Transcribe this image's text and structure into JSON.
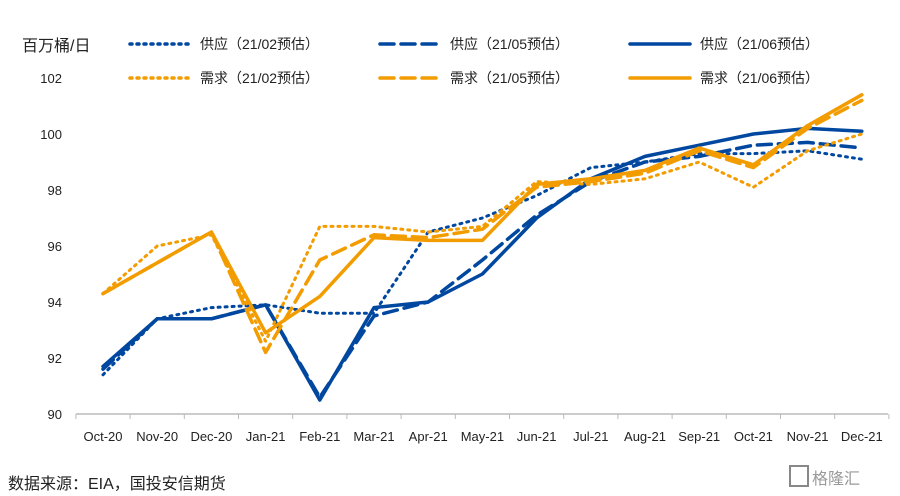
{
  "chart_data": {
    "type": "line",
    "ylabel": "百万桶/日",
    "ylim": [
      90,
      102
    ],
    "yticks": [
      90,
      92,
      94,
      96,
      98,
      100,
      102
    ],
    "grid": false,
    "legend": "top",
    "categories": [
      "Oct-20",
      "Nov-20",
      "Dec-20",
      "Jan-21",
      "Feb-21",
      "Mar-21",
      "Apr-21",
      "May-21",
      "Jun-21",
      "Jul-21",
      "Aug-21",
      "Sep-21",
      "Oct-21",
      "Nov-21",
      "Dec-21"
    ],
    "series": [
      {
        "name": "供应（21/02预估）",
        "color": "#0047a0",
        "style": "dotted",
        "values": [
          91.4,
          93.4,
          93.8,
          93.9,
          93.6,
          93.6,
          96.5,
          97.0,
          97.8,
          98.8,
          99.0,
          99.3,
          99.3,
          99.4,
          99.1
        ]
      },
      {
        "name": "供应（21/05预估）",
        "color": "#0047a0",
        "style": "dashed",
        "values": [
          91.6,
          93.4,
          93.4,
          93.9,
          90.6,
          93.5,
          94.0,
          95.5,
          97.1,
          98.3,
          99.0,
          99.2,
          99.6,
          99.7,
          99.5
        ]
      },
      {
        "name": "供应（21/06预估）",
        "color": "#0047a0",
        "style": "solid",
        "values": [
          91.7,
          93.4,
          93.4,
          93.9,
          90.5,
          93.8,
          94.0,
          95.0,
          97.0,
          98.4,
          99.2,
          99.6,
          100.0,
          100.2,
          100.1
        ]
      },
      {
        "name": "需求（21/02预估）",
        "color": "#f39c00",
        "style": "dotted",
        "values": [
          94.3,
          96.0,
          96.4,
          92.6,
          96.7,
          96.7,
          96.5,
          96.7,
          98.3,
          98.2,
          98.4,
          99.0,
          98.1,
          99.4,
          100.0
        ]
      },
      {
        "name": "需求（21/05预估）",
        "color": "#f39c00",
        "style": "dashed",
        "values": [
          94.3,
          95.4,
          96.5,
          92.2,
          95.5,
          96.4,
          96.3,
          96.6,
          98.1,
          98.3,
          98.6,
          99.4,
          98.8,
          100.2,
          101.2
        ]
      },
      {
        "name": "需求（21/06预估）",
        "color": "#f39c00",
        "style": "solid",
        "values": [
          94.3,
          95.4,
          96.5,
          92.9,
          94.2,
          96.3,
          96.2,
          96.2,
          98.2,
          98.4,
          98.7,
          99.5,
          98.9,
          100.3,
          101.4
        ]
      }
    ]
  },
  "source": "数据来源：EIA，国投安信期货",
  "watermark": "格隆汇"
}
